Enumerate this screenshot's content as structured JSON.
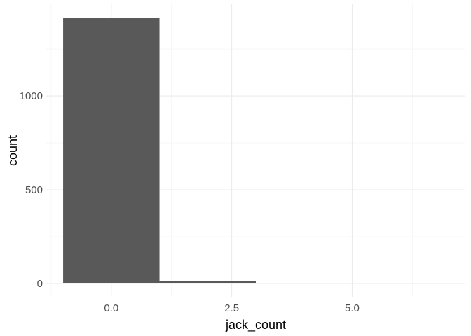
{
  "chart_data": {
    "type": "bar",
    "subtype": "histogram",
    "xlabel": "jack_count",
    "ylabel": "count",
    "bins": [
      {
        "x0": -1,
        "x1": 1,
        "count": 1418
      },
      {
        "x0": 1,
        "x1": 3,
        "count": 12
      }
    ],
    "x_ticks": [
      {
        "value": 0,
        "label": "0.0"
      },
      {
        "value": 2.5,
        "label": "2.5"
      },
      {
        "value": 5,
        "label": "5.0"
      }
    ],
    "y_ticks": [
      {
        "value": 0,
        "label": "0"
      },
      {
        "value": 500,
        "label": "500"
      },
      {
        "value": 1000,
        "label": "1000"
      }
    ],
    "xlim": [
      -1.35,
      7.35
    ],
    "ylim": [
      -71,
      1489
    ],
    "grid": true,
    "legend": "none",
    "colors": {
      "bar": "#595959",
      "grid_major": "#ebebeb",
      "grid_minor": "#f2f2f2",
      "tick_text": "#4d4d4d",
      "title_text": "#000000"
    }
  }
}
